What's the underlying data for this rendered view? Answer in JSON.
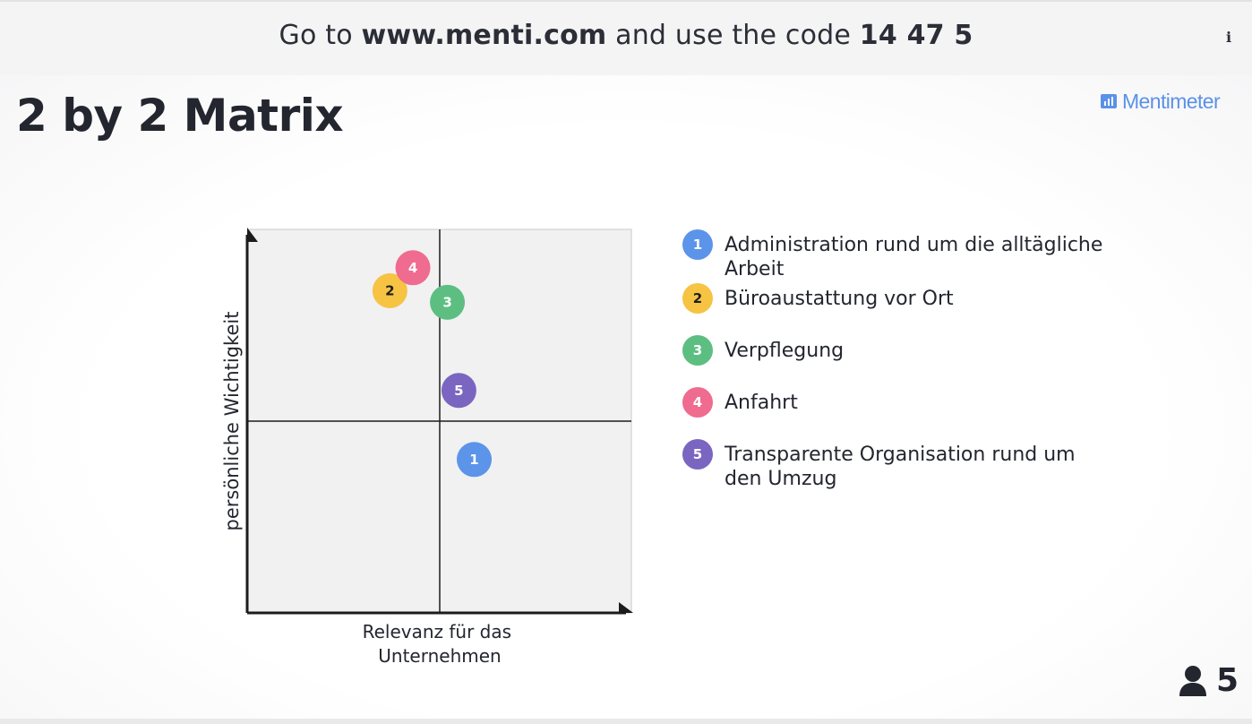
{
  "header": {
    "join_prefix": "Go to ",
    "join_url": "www.menti.com",
    "join_middle": " and use the code ",
    "join_code": "14 47 5",
    "info_glyph": "i"
  },
  "slide": {
    "title": "2 by 2 Matrix",
    "brand": "Mentimeter",
    "brand_color": "#5b91e8"
  },
  "chart_data": {
    "type": "scatter",
    "xlabel": "Relevanz für das Unternehmen",
    "ylabel": "persönliche Wichtigkeit",
    "xlim": [
      0,
      10
    ],
    "ylim": [
      0,
      10
    ],
    "grid": false,
    "quadrant_dividers": true,
    "legend_position": "right",
    "points": [
      {
        "id": "1",
        "label": "Administration rund um die alltägliche Arbeit",
        "x": 5.9,
        "y": 4.0,
        "color": "#5c94ea"
      },
      {
        "id": "2",
        "label": "Büroaustattung vor Ort",
        "x": 3.7,
        "y": 8.4,
        "color": "#f6c343"
      },
      {
        "id": "3",
        "label": "Verpflegung",
        "x": 5.2,
        "y": 8.1,
        "color": "#5dbe82"
      },
      {
        "id": "4",
        "label": "Anfahrt",
        "x": 4.3,
        "y": 9.0,
        "color": "#ef6b8f"
      },
      {
        "id": "5",
        "label": "Transparente Organisation rund um den Umzug",
        "x": 5.5,
        "y": 5.8,
        "color": "#7a66c1"
      }
    ]
  },
  "legend": {
    "items": [
      {
        "num": "1",
        "line1": "Administration rund um die alltägliche",
        "line2": "Arbeit",
        "color": "#5c94ea"
      },
      {
        "num": "2",
        "line1": "Büroaustattung vor Ort",
        "line2": "",
        "color": "#f6c343"
      },
      {
        "num": "3",
        "line1": "Verpflegung",
        "line2": "",
        "color": "#5dbe82"
      },
      {
        "num": "4",
        "line1": "Anfahrt",
        "line2": "",
        "color": "#ef6b8f"
      },
      {
        "num": "5",
        "line1": "Transparente Organisation rund um",
        "line2": "den Umzug",
        "color": "#7a66c1"
      }
    ]
  },
  "footer": {
    "participant_count": "5",
    "participant_icon": "person-icon"
  }
}
